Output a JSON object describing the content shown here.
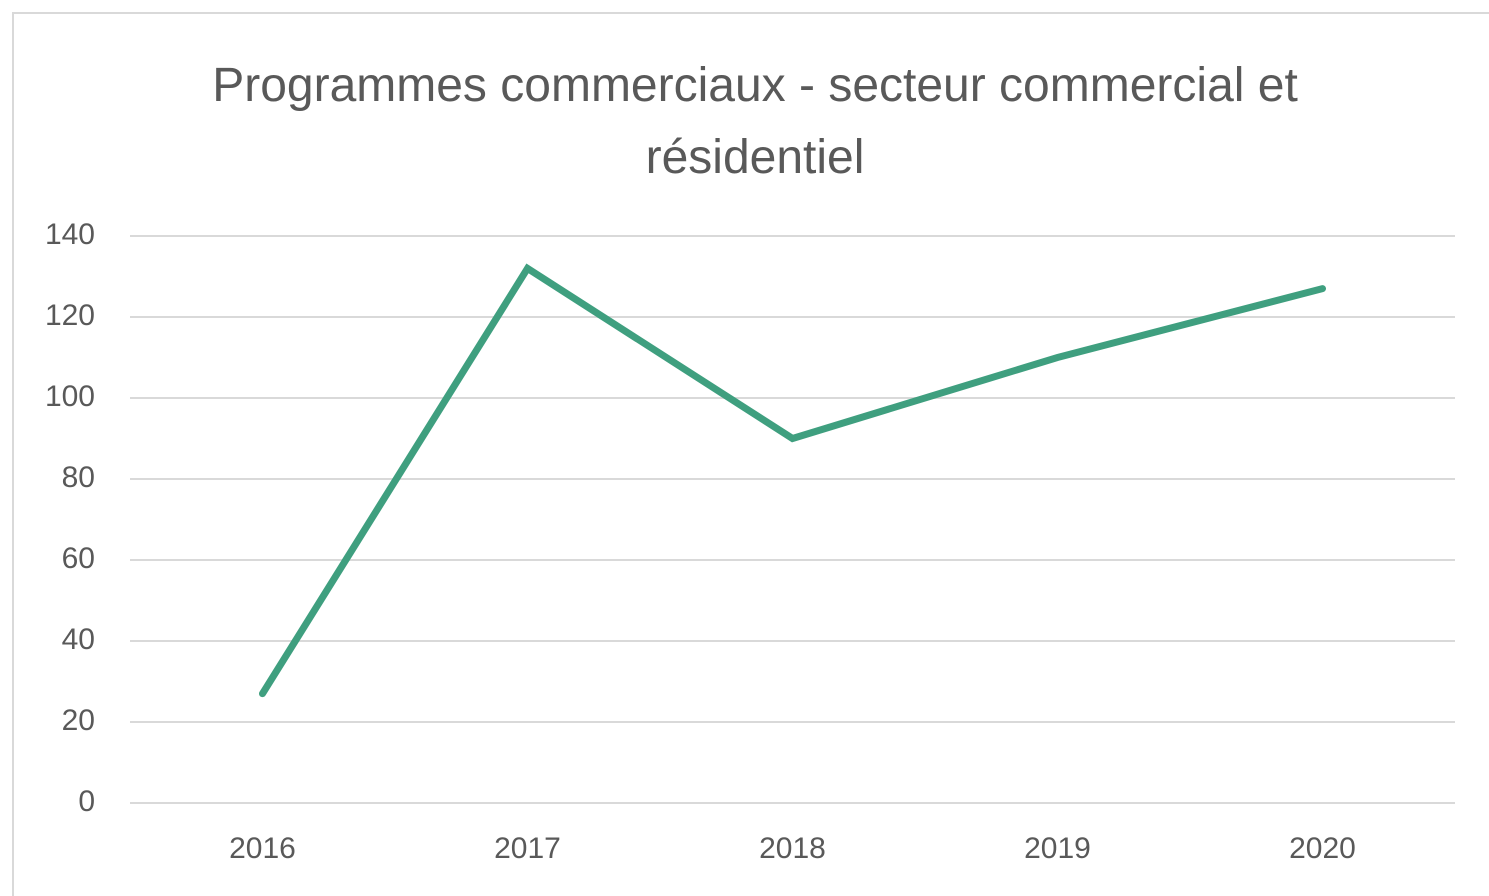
{
  "chart_data": {
    "type": "line",
    "title": "Programmes commerciaux - secteur commercial et résidentiel",
    "categories": [
      "2016",
      "2017",
      "2018",
      "2019",
      "2020"
    ],
    "series": [
      {
        "color": "#3f9f7f",
        "values": [
          27,
          132,
          90,
          110,
          127
        ]
      }
    ],
    "ylim": [
      0,
      140
    ],
    "yticks": [
      0,
      20,
      40,
      60,
      80,
      100,
      120,
      140
    ],
    "grid": true
  }
}
